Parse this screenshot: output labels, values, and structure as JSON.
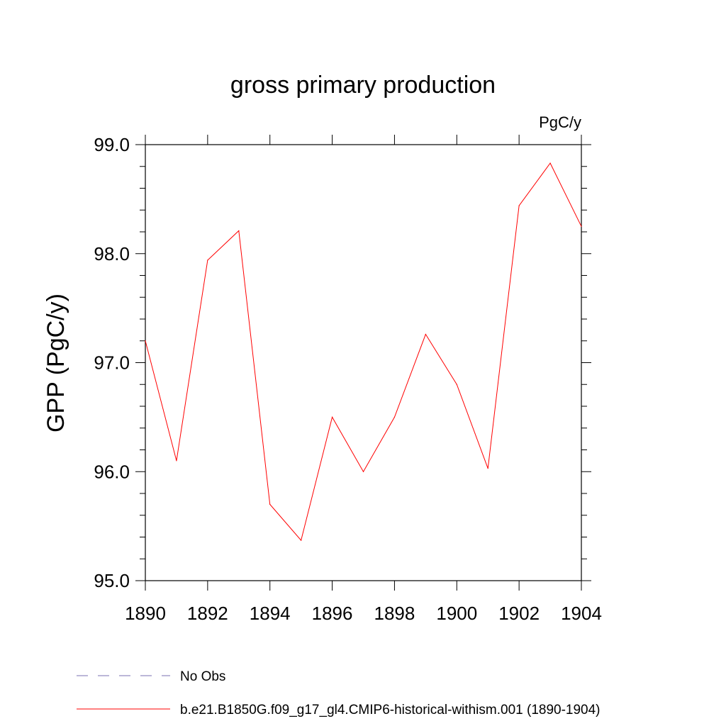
{
  "chart_data": {
    "type": "line",
    "title": "gross primary production",
    "units_label": "PgC/y",
    "ylabel": "GPP  (PgC/y)",
    "xlabel": "",
    "xlim": [
      1890,
      1904
    ],
    "ylim": [
      95.0,
      99.0
    ],
    "x_ticks": [
      1890,
      1892,
      1894,
      1896,
      1898,
      1900,
      1902,
      1904
    ],
    "x_tick_labels": [
      "1890",
      "1892",
      "1894",
      "1896",
      "1898",
      "1900",
      "1902",
      "1904"
    ],
    "y_ticks": [
      95.0,
      96.0,
      97.0,
      98.0,
      99.0
    ],
    "y_tick_labels": [
      "95.0",
      "96.0",
      "97.0",
      "98.0",
      "99.0"
    ],
    "grid": false,
    "x": [
      1890,
      1891,
      1892,
      1893,
      1894,
      1895,
      1896,
      1897,
      1898,
      1899,
      1900,
      1901,
      1902,
      1903,
      1904
    ],
    "series": [
      {
        "name": "b.e21.B1850G.f09_g17_gl4.CMIP6-historical-withism.001 (1890-1904)",
        "color": "#ff0000",
        "style": "solid",
        "values": [
          97.2,
          96.1,
          97.94,
          98.21,
          95.7,
          95.37,
          96.5,
          96.0,
          96.5,
          97.26,
          96.8,
          96.03,
          98.44,
          98.83,
          98.25
        ]
      }
    ],
    "legend": {
      "placement": "bottom",
      "entries": [
        {
          "label": "No Obs",
          "color": "#7a6fb0",
          "style": "dashed"
        },
        {
          "label": "b.e21.B1850G.f09_g17_gl4.CMIP6-historical-withism.001 (1890-1904)",
          "color": "#ff0000",
          "style": "solid"
        }
      ]
    }
  }
}
